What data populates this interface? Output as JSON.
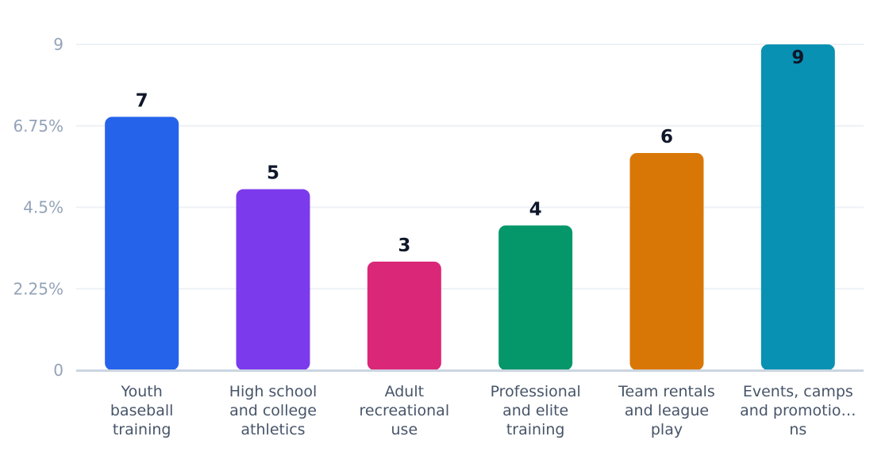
{
  "chart_data": {
    "type": "bar",
    "categories": [
      [
        "Youth",
        "baseball",
        "training"
      ],
      [
        "High school",
        "and college",
        "athletics"
      ],
      [
        "Adult",
        "recreational",
        "use"
      ],
      [
        "Professional",
        "and elite",
        "training"
      ],
      [
        "Team rentals",
        "and league",
        "play"
      ],
      [
        "Events, camps",
        "and promotio…",
        "ns"
      ]
    ],
    "values": [
      7,
      5,
      3,
      4,
      6,
      9
    ],
    "value_labels": [
      "7",
      "5",
      "3",
      "4",
      "6",
      "9"
    ],
    "colors": [
      "#2563eb",
      "#7c3aed",
      "#db2777",
      "#059669",
      "#d97706",
      "#0891b2"
    ],
    "yticks": [
      0,
      2.25,
      4.5,
      6.75,
      9
    ],
    "ytick_labels": [
      "0",
      "2.25%",
      "4.5%",
      "6.75%",
      "9"
    ],
    "ylim": [
      0,
      9
    ],
    "grid": true,
    "title": "",
    "xlabel": "",
    "ylabel": ""
  }
}
